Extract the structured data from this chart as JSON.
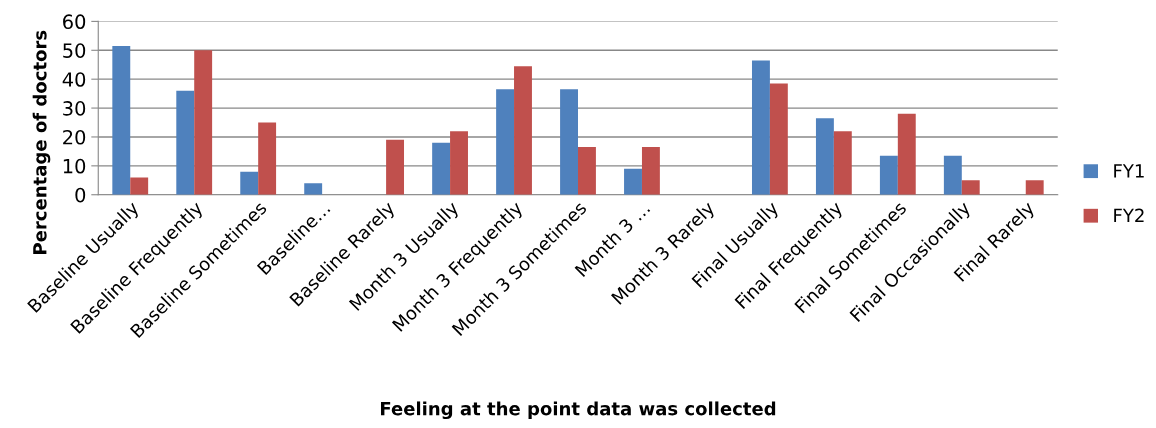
{
  "chart_data": {
    "type": "bar",
    "xlabel": "Feeling at the point data was collected",
    "ylabel": "Percentage of doctors",
    "categories": [
      "Baseline Usually",
      "Baseline Frequently",
      "Baseline Sometimes",
      "Baseline…",
      "Baseline Rarely",
      "Month 3 Usually",
      "Month 3 Frequently",
      "Month 3 Sometimes",
      "Month 3 …",
      "Month 3 Rarely",
      "Final Usually",
      "Final Frequently",
      "Final Sometimes",
      "Final Occasionally",
      "Final Rarely"
    ],
    "series": [
      {
        "name": "FY1",
        "color": "#4f81bd",
        "values": [
          51.5,
          36,
          8,
          4,
          0,
          18,
          36.5,
          36.5,
          9,
          0,
          46.5,
          26.5,
          13.5,
          13.5,
          0
        ]
      },
      {
        "name": "FY2",
        "color": "#c0504d",
        "values": [
          6,
          50,
          25,
          0,
          19,
          22,
          44.5,
          16.5,
          16.5,
          0,
          38.5,
          22,
          28,
          5,
          5
        ]
      }
    ],
    "ylim": [
      0,
      60
    ],
    "yticks": [
      0,
      10,
      20,
      30,
      40,
      50,
      60
    ],
    "grid": "y",
    "legend": "right"
  }
}
